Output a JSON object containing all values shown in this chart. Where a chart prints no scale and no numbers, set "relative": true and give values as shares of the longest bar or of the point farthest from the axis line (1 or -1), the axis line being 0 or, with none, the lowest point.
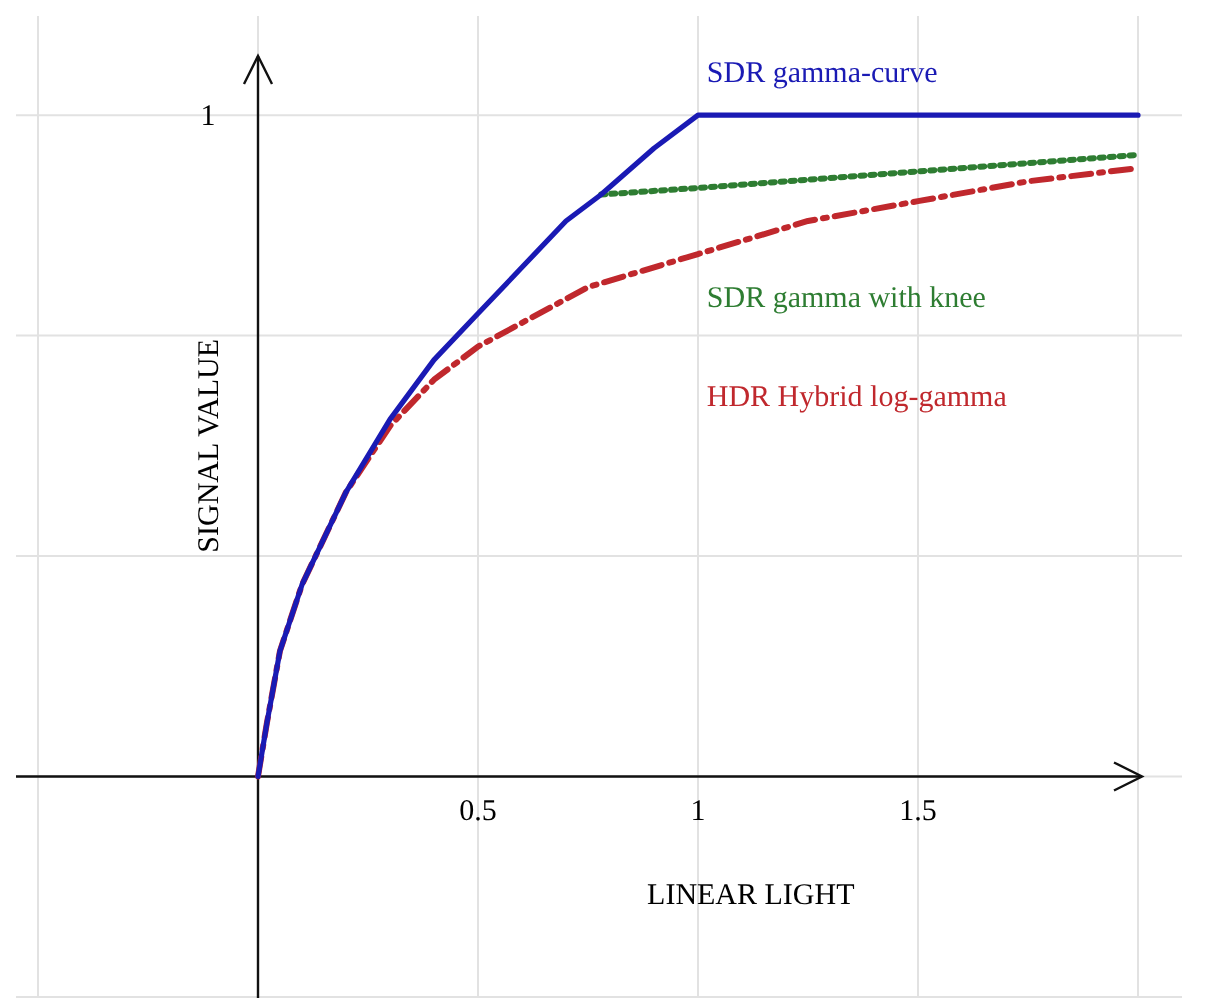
{
  "chart_data": {
    "type": "line",
    "xlabel": "LINEAR LIGHT",
    "ylabel": "SIGNAL VALUE",
    "xlim": [
      -0.55,
      2.1
    ],
    "relative": true,
    "annotations": [
      "1"
    ],
    "xticks": [
      {
        "value": -0.5,
        "label": null
      },
      {
        "value": 0,
        "label": null
      },
      0.5,
      1,
      1.5,
      {
        "value": 2,
        "label": null
      }
    ],
    "grid": true,
    "legend": false,
    "series": [
      {
        "name": "HDR Hybrid log-gamma",
        "color": "#c0282d",
        "line_style": "dashdot",
        "x": [
          0,
          0.02,
          0.05,
          0.1,
          0.2,
          0.3,
          0.4,
          0.5,
          0.75,
          1,
          1.25,
          1.5,
          1.75,
          2
        ],
        "values": [
          0,
          0.08,
          0.19,
          0.29,
          0.43,
          0.53,
          0.6,
          0.65,
          0.74,
          0.79,
          0.84,
          0.87,
          0.9,
          0.92
        ]
      },
      {
        "name": "SDR gamma with knee",
        "color": "#2e7d32",
        "line_style": "dotted",
        "x": [
          0.78,
          1,
          1.5,
          2
        ],
        "values": [
          0.88,
          0.89,
          0.915,
          0.94
        ]
      },
      {
        "name": "SDR gamma-curve",
        "color": "#1a1ab4",
        "line_style": "solid",
        "x": [
          0,
          0.02,
          0.05,
          0.1,
          0.2,
          0.3,
          0.4,
          0.5,
          0.6,
          0.7,
          0.78,
          0.9,
          1,
          2
        ],
        "values": [
          0,
          0.08,
          0.19,
          0.29,
          0.43,
          0.54,
          0.63,
          0.7,
          0.77,
          0.84,
          0.88,
          0.95,
          1,
          1
        ]
      }
    ]
  }
}
